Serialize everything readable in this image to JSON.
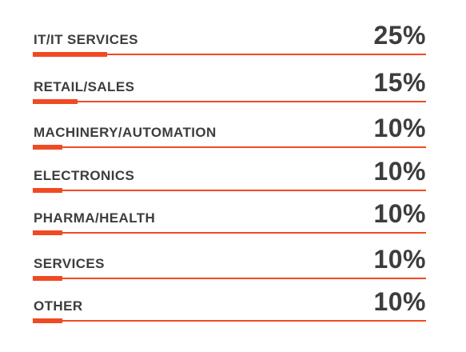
{
  "chart_data": {
    "type": "bar",
    "categories": [
      "IT/IT SERVICES",
      "RETAIL/SALES",
      "MACHINERY/AUTOMATION",
      "ELECTRONICS",
      "PHARMA/HEALTH",
      "SERVICES",
      "OTHER"
    ],
    "values": [
      25,
      15,
      10,
      10,
      10,
      10,
      10
    ],
    "value_labels": [
      "25%",
      "15%",
      "10%",
      "10%",
      "10%",
      "10%",
      "10%"
    ],
    "title": "",
    "xlabel": "",
    "ylabel": "",
    "xlim": [
      0,
      100
    ],
    "orientation": "horizontal",
    "grid": false,
    "bar_color": "#f04a23",
    "text_color": "#3d3d3d"
  }
}
